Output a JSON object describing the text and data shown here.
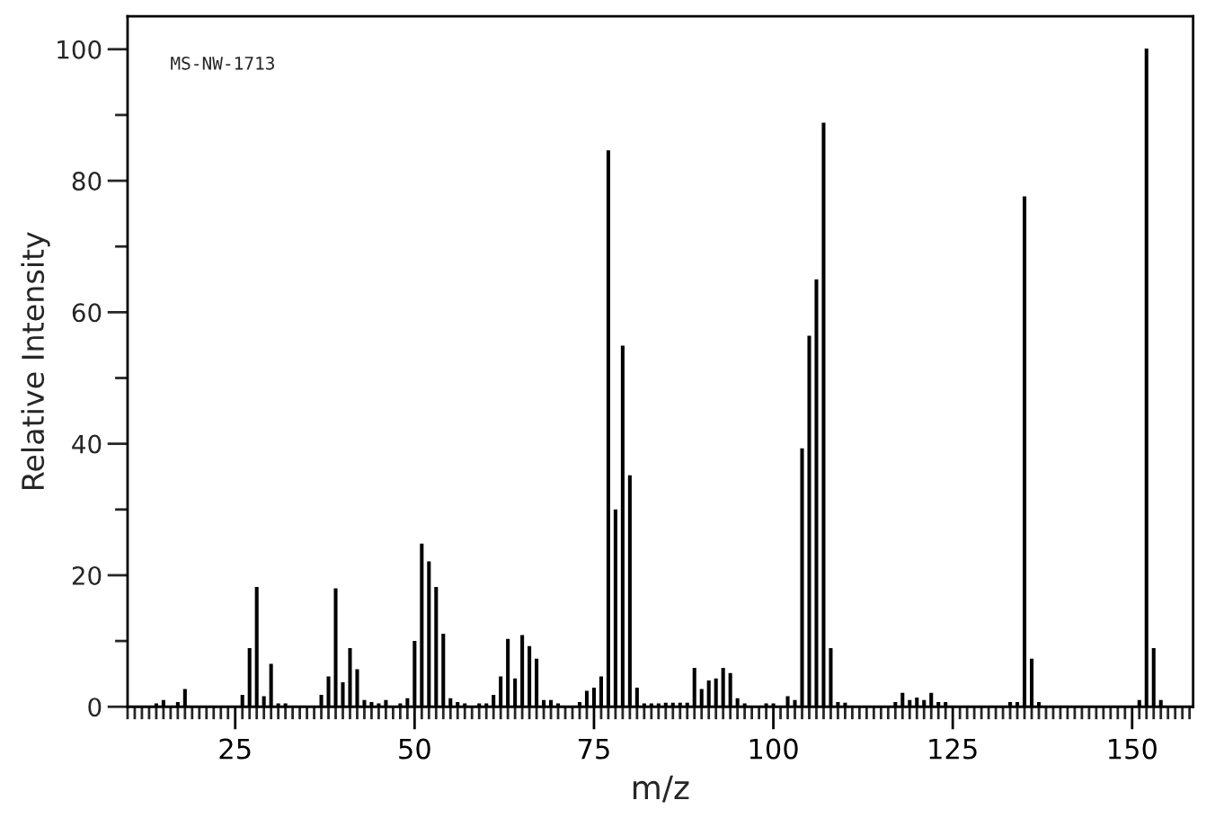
{
  "chart_data": {
    "type": "bar",
    "xlabel": "m/z",
    "ylabel": "Relative Intensity",
    "annotations": [
      "MS-NW-1713"
    ],
    "x": [
      14,
      15,
      17,
      18,
      26,
      27,
      28,
      29,
      30,
      31,
      32,
      37,
      38,
      39,
      40,
      41,
      42,
      43,
      44,
      45,
      46,
      48,
      49,
      50,
      51,
      52,
      53,
      54,
      55,
      56,
      57,
      59,
      60,
      61,
      62,
      63,
      64,
      65,
      66,
      67,
      68,
      69,
      70,
      73,
      74,
      75,
      76,
      77,
      78,
      79,
      80,
      81,
      82,
      83,
      84,
      85,
      86,
      87,
      88,
      89,
      90,
      91,
      92,
      93,
      94,
      95,
      96,
      99,
      100,
      102,
      103,
      104,
      105,
      106,
      107,
      108,
      109,
      110,
      117,
      118,
      119,
      120,
      121,
      122,
      123,
      124,
      133,
      134,
      135,
      136,
      137,
      151,
      152,
      153,
      154
    ],
    "values": [
      0.4,
      0.9,
      0.6,
      2.6,
      1.7,
      8.8,
      18.1,
      1.5,
      6.4,
      0.4,
      0.4,
      1.7,
      4.5,
      17.9,
      3.6,
      8.8,
      5.6,
      0.9,
      0.6,
      0.4,
      0.9,
      0.4,
      1.2,
      9.9,
      24.7,
      22.0,
      18.1,
      11.0,
      1.2,
      0.6,
      0.4,
      0.4,
      0.4,
      1.7,
      4.5,
      10.2,
      4.2,
      10.8,
      9.1,
      7.2,
      0.9,
      0.9,
      0.4,
      0.6,
      2.3,
      2.8,
      4.5,
      84.5,
      29.9,
      54.8,
      35.1,
      2.8,
      0.4,
      0.4,
      0.4,
      0.5,
      0.5,
      0.5,
      0.5,
      5.8,
      2.6,
      3.9,
      4.2,
      5.8,
      5.0,
      1.2,
      0.4,
      0.4,
      0.4,
      1.5,
      0.9,
      39.2,
      56.3,
      64.9,
      88.7,
      8.8,
      0.6,
      0.5,
      0.6,
      2.0,
      0.9,
      1.3,
      0.9,
      2.0,
      0.6,
      0.6,
      0.6,
      0.6,
      77.5,
      7.2,
      0.6,
      0.9,
      100,
      8.8,
      0.9
    ],
    "color": "#000000",
    "xlim": [
      10,
      158.5
    ],
    "xticks": [
      25,
      50,
      75,
      100,
      125,
      150
    ],
    "ylim": [
      0,
      105
    ],
    "yticks": [
      0,
      20,
      40,
      60,
      80,
      100
    ],
    "grid": false,
    "legend": false
  }
}
